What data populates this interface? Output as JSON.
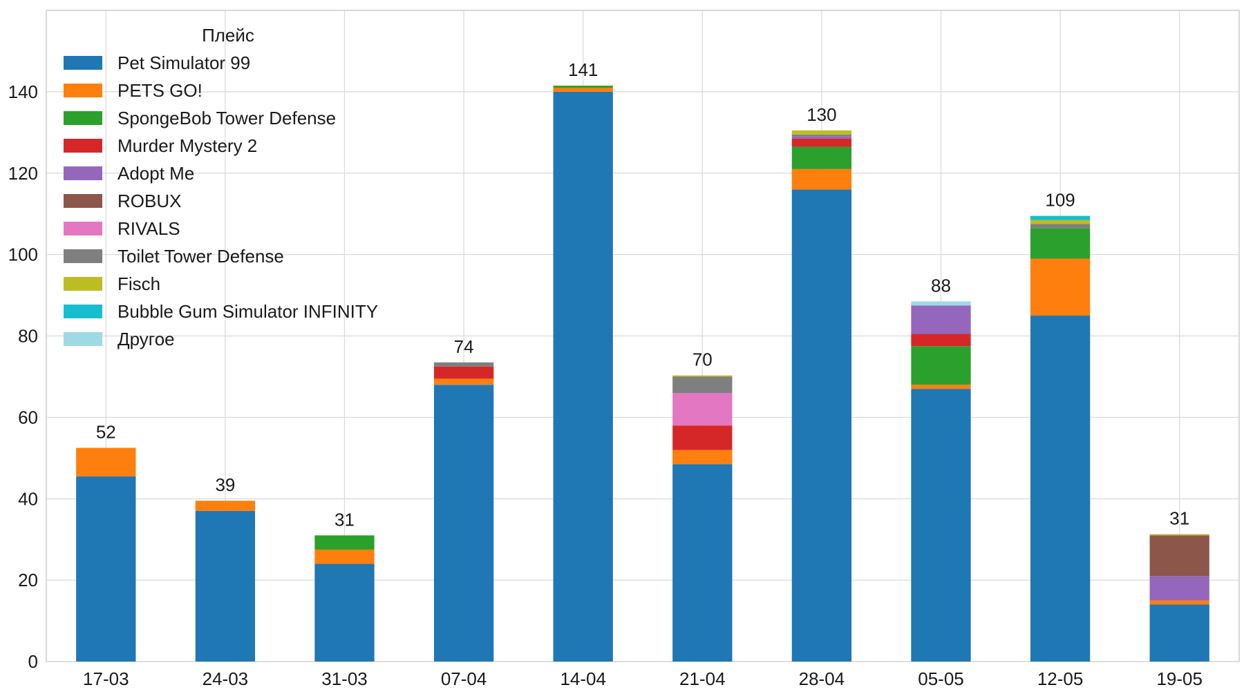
{
  "chart_data": {
    "type": "bar",
    "stacked": true,
    "title": "",
    "xlabel": "",
    "ylabel": "",
    "ylim": [
      0,
      160
    ],
    "yticks": [
      0,
      20,
      40,
      60,
      80,
      100,
      120,
      140
    ],
    "grid": true,
    "legend": {
      "title": "Плейс",
      "placement": "top-left"
    },
    "categories": [
      "17-03",
      "24-03",
      "31-03",
      "07-04",
      "14-04",
      "21-04",
      "28-04",
      "05-05",
      "12-05",
      "19-05"
    ],
    "totals": [
      "52",
      "39",
      "31",
      "74",
      "141",
      "70",
      "130",
      "88",
      "109",
      "31"
    ],
    "series": [
      {
        "name": "Pet Simulator 99",
        "color": "#1f77b4",
        "values": [
          45.5,
          37,
          24,
          68,
          140,
          48.5,
          116,
          67,
          85,
          14
        ]
      },
      {
        "name": "PETS GO!",
        "color": "#ff7f0e",
        "values": [
          7,
          2.5,
          3.5,
          1.5,
          1,
          3.5,
          5,
          1,
          14,
          1
        ]
      },
      {
        "name": "SpongeBob Tower Defense",
        "color": "#2ca02c",
        "values": [
          0,
          0,
          3.5,
          0,
          0.5,
          0,
          5.5,
          9.5,
          7.5,
          0
        ]
      },
      {
        "name": "Murder Mystery 2",
        "color": "#d62728",
        "values": [
          0,
          0,
          0,
          3,
          0,
          6,
          2,
          3,
          0,
          0
        ]
      },
      {
        "name": "Adopt Me",
        "color": "#9467bd",
        "values": [
          0,
          0,
          0,
          0,
          0,
          0,
          0.5,
          7,
          0,
          6
        ]
      },
      {
        "name": "ROBUX",
        "color": "#8c564b",
        "values": [
          0,
          0,
          0,
          0,
          0,
          0,
          0,
          0,
          0,
          10
        ]
      },
      {
        "name": "RIVALS",
        "color": "#e377c2",
        "values": [
          0,
          0,
          0,
          0,
          0,
          8,
          0,
          0,
          0,
          0
        ]
      },
      {
        "name": "Toilet Tower Defense",
        "color": "#7f7f7f",
        "values": [
          0,
          0,
          0,
          1,
          0,
          4,
          0.5,
          0,
          1,
          0
        ]
      },
      {
        "name": "Fisch",
        "color": "#bcbd22",
        "values": [
          0,
          0,
          0,
          0,
          0,
          0.3,
          1,
          0,
          1,
          0.3
        ]
      },
      {
        "name": "Bubble Gum Simulator INFINITY",
        "color": "#17becf",
        "values": [
          0,
          0,
          0,
          0,
          0,
          0,
          0,
          0,
          1,
          0
        ]
      },
      {
        "name": "Другое",
        "color": "#9edae5",
        "values": [
          0,
          0,
          0,
          0,
          0,
          0,
          0,
          1,
          0,
          0
        ]
      }
    ]
  }
}
